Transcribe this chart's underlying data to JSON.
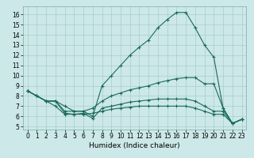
{
  "bg_color": "#cce8e8",
  "grid_color": "#aacccc",
  "line_color": "#1a6b5a",
  "xlabel": "Humidex (Indice chaleur)",
  "xlim": [
    -0.5,
    23.5
  ],
  "ylim": [
    4.7,
    16.8
  ],
  "yticks": [
    5,
    6,
    7,
    8,
    9,
    10,
    11,
    12,
    13,
    14,
    15,
    16
  ],
  "xticks": [
    0,
    1,
    2,
    3,
    4,
    5,
    6,
    7,
    8,
    9,
    10,
    11,
    12,
    13,
    14,
    15,
    16,
    17,
    18,
    19,
    20,
    21,
    22,
    23
  ],
  "line1_y": [
    8.5,
    8.0,
    7.5,
    7.5,
    7.0,
    6.5,
    6.5,
    6.0,
    9.0,
    10.0,
    11.0,
    12.0,
    12.8,
    13.5,
    14.7,
    15.5,
    16.2,
    16.2,
    14.7,
    13.0,
    11.8,
    6.8,
    5.3,
    5.7
  ],
  "line2_y": [
    8.5,
    8.0,
    7.5,
    7.5,
    6.5,
    6.5,
    6.5,
    6.8,
    7.5,
    8.0,
    8.3,
    8.6,
    8.8,
    9.0,
    9.3,
    9.5,
    9.7,
    9.8,
    9.8,
    9.2,
    9.2,
    6.8,
    5.3,
    5.7
  ],
  "line3_y": [
    8.5,
    8.0,
    7.5,
    7.5,
    6.3,
    6.2,
    6.3,
    5.8,
    6.8,
    7.0,
    7.2,
    7.4,
    7.5,
    7.6,
    7.7,
    7.7,
    7.7,
    7.7,
    7.5,
    7.0,
    6.5,
    6.5,
    5.3,
    5.7
  ],
  "line4_y": [
    8.5,
    8.0,
    7.5,
    7.0,
    6.2,
    6.2,
    6.2,
    6.3,
    6.5,
    6.7,
    6.8,
    6.9,
    7.0,
    7.0,
    7.0,
    7.0,
    7.0,
    7.0,
    6.8,
    6.5,
    6.2,
    6.2,
    5.3,
    5.7
  ],
  "marker": "+",
  "markersize": 3,
  "linewidth": 0.8,
  "tick_fontsize": 5.5,
  "xlabel_fontsize": 6.5
}
